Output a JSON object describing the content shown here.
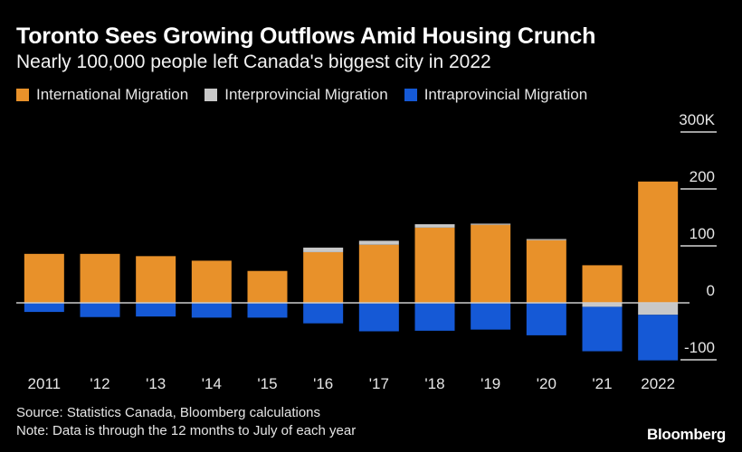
{
  "title": "Toronto Sees Growing Outflows Amid Housing Crunch",
  "subtitle": "Nearly 100,000 people left Canada's biggest city in 2022",
  "footer": {
    "source": "Source: Statistics Canada, Bloomberg calculations",
    "note": "Note: Data is through the 12 months to July of each year"
  },
  "brand": "Bloomberg",
  "chart_data": {
    "type": "bar",
    "stacked": true,
    "categories": [
      "2011",
      "'12",
      "'13",
      "'14",
      "'15",
      "'16",
      "'17",
      "'18",
      "'19",
      "'20",
      "'21",
      "2022"
    ],
    "series": [
      {
        "name": "International Migration",
        "color": "#e8912a",
        "values": [
          86,
          86,
          82,
          74,
          56,
          89,
          102,
          132,
          137,
          110,
          66,
          213
        ]
      },
      {
        "name": "Interprovincial Migration",
        "color": "#c8c8c8",
        "values": [
          0,
          0,
          0,
          0,
          0,
          8,
          7,
          6,
          2,
          2,
          -7,
          -21
        ]
      },
      {
        "name": "Intraprovincial Migration",
        "color": "#1559d6",
        "values": [
          -16,
          -25,
          -24,
          -26,
          -26,
          -36,
          -50,
          -49,
          -47,
          -57,
          -78,
          -80
        ]
      }
    ],
    "yticks": [
      {
        "value": -100,
        "label": "-100"
      },
      {
        "value": 0,
        "label": "0"
      },
      {
        "value": 100,
        "label": "100"
      },
      {
        "value": 200,
        "label": "200"
      },
      {
        "value": 300,
        "label": "300K"
      }
    ],
    "ylim": [
      -100,
      300
    ],
    "y_axis_side": "right",
    "legend_position": "top-left",
    "grid": false
  }
}
